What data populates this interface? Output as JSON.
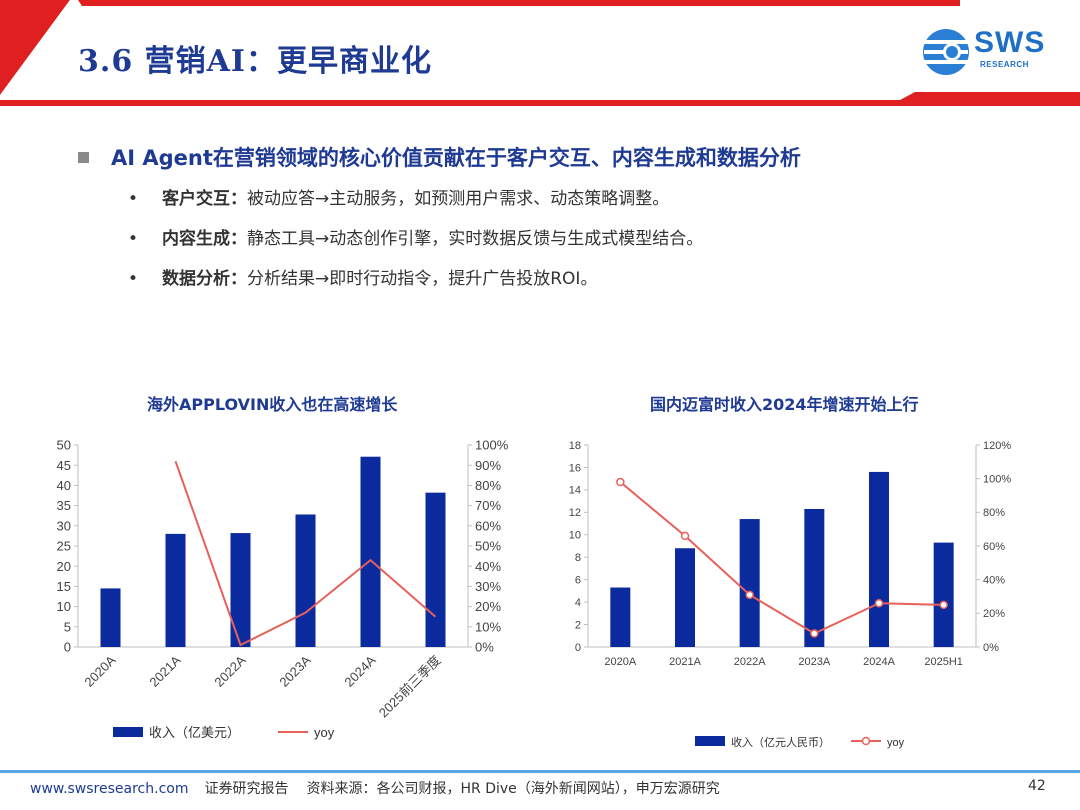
{
  "header": {
    "title": "3.6 营销AI：更早商业化",
    "logo_text": "SWS",
    "logo_sub": "RESEARCH"
  },
  "main_point": "AI Agent在营销领域的核心价值贡献在于客户交互、内容生成和数据分析",
  "bullets": [
    {
      "key": "客户交互：",
      "text": "被动应答→主动服务，如预测用户需求、动态策略调整。"
    },
    {
      "key": "内容生成：",
      "text": "静态工具→动态创作引擎，实时数据反馈与生成式模型结合。"
    },
    {
      "key": "数据分析：",
      "text": "分析结果→即时行动指令，提升广告投放ROI。"
    }
  ],
  "chart_data": [
    {
      "type": "bar",
      "title": "海外APPLOVIN收入也在高速增长",
      "categories": [
        "2020A",
        "2021A",
        "2022A",
        "2023A",
        "2024A",
        "2025前三季度"
      ],
      "series": [
        {
          "name": "收入（亿美元）",
          "type": "bar",
          "axis": "left",
          "values": [
            14.5,
            28.0,
            28.2,
            32.8,
            47.1,
            38.2
          ]
        },
        {
          "name": "yoy",
          "type": "line",
          "axis": "right",
          "values": [
            null,
            92,
            1,
            17,
            43,
            15
          ]
        }
      ],
      "y_left": {
        "ylim": [
          0,
          50
        ],
        "ticks": [
          0,
          5,
          10,
          15,
          20,
          25,
          30,
          35,
          40,
          45,
          50
        ],
        "labels": [
          "0",
          "5",
          "10",
          "15",
          "20",
          "25",
          "30",
          "35",
          "40",
          "45",
          "50"
        ]
      },
      "y_right": {
        "ylim": [
          0,
          100
        ],
        "ticks": [
          0,
          10,
          20,
          30,
          40,
          50,
          60,
          70,
          80,
          90,
          100
        ],
        "labels": [
          "0%",
          "10%",
          "20%",
          "30%",
          "40%",
          "50%",
          "60%",
          "70%",
          "80%",
          "90%",
          "100%"
        ]
      },
      "colors": {
        "bar": "#0a2a9e",
        "line": "#e8605a"
      }
    },
    {
      "type": "bar",
      "title": "国内迈富时收入2024年增速开始上行",
      "categories": [
        "2020A",
        "2021A",
        "2022A",
        "2023A",
        "2024A",
        "2025H1"
      ],
      "series": [
        {
          "name": "收入（亿元人民币）",
          "type": "bar",
          "axis": "left",
          "values": [
            5.3,
            8.8,
            11.4,
            12.3,
            15.6,
            9.3
          ]
        },
        {
          "name": "yoy",
          "type": "line",
          "axis": "right",
          "values": [
            98,
            66,
            31,
            8,
            26,
            25
          ]
        }
      ],
      "y_left": {
        "ylim": [
          0,
          18
        ],
        "ticks": [
          0,
          2,
          4,
          6,
          8,
          10,
          12,
          14,
          16,
          18
        ],
        "labels": [
          "0",
          "2",
          "4",
          "6",
          "8",
          "10",
          "12",
          "14",
          "16",
          "18"
        ]
      },
      "y_right": {
        "ylim": [
          0,
          120
        ],
        "ticks": [
          0,
          20,
          40,
          60,
          80,
          100,
          120
        ],
        "labels": [
          "0%",
          "20%",
          "40%",
          "60%",
          "80%",
          "100%",
          "120%"
        ]
      },
      "colors": {
        "bar": "#0a2a9e",
        "line": "#e8605a"
      }
    }
  ],
  "footer": {
    "site": "www.swsresearch.com",
    "type": "证券研究报告",
    "source": "资料来源：各公司财报，HR Dive（海外新闻网站），申万宏源研究",
    "page": "42"
  }
}
